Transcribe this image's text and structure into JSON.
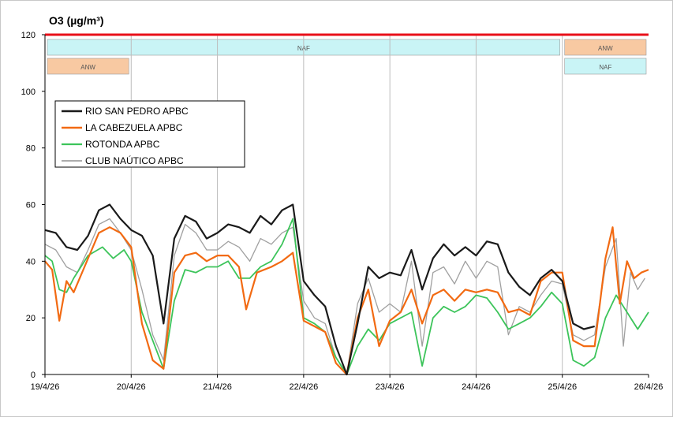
{
  "chart_data": {
    "type": "line",
    "title": "O3 (µg/m³)",
    "xlabel": "",
    "ylabel": "",
    "ylim": [
      0,
      120
    ],
    "xlim": [
      "2026-04-19",
      "2026-04-26"
    ],
    "yticks": [
      "0",
      "20",
      "40",
      "60",
      "80",
      "100",
      "120"
    ],
    "xticks": [
      "19/4/26",
      "20/4/26",
      "21/4/26",
      "22/4/26",
      "23/4/26",
      "24/4/26",
      "25/4/26",
      "26/4/26"
    ],
    "grid": "vertical lines at each day",
    "legend_position": "upper-left, inside plot",
    "threshold": {
      "value": 120,
      "color": "#e8101a"
    },
    "bands": [
      {
        "label": "NAF",
        "start": "2026-04-19",
        "end": "2026-04-25",
        "row": 1,
        "color": "#c9f4f6"
      },
      {
        "label": "ANW",
        "start": "2026-04-25",
        "end": "2026-04-26",
        "row": 1,
        "color": "#f8c9a2"
      },
      {
        "label": "ANW",
        "start": "2026-04-19",
        "end": "2026-04-20",
        "row": 2,
        "color": "#f8c9a2"
      },
      {
        "label": "NAF",
        "start": "2026-04-25",
        "end": "2026-04-26",
        "row": 2,
        "color": "#c9f4f6"
      }
    ],
    "series": [
      {
        "name": "RIO SAN PEDRO  APBC",
        "color": "#1a1a1a",
        "width": 2.2,
        "values": [
          [
            "2026-04-19 00:00",
            51
          ],
          [
            "2026-04-19 03:00",
            50
          ],
          [
            "2026-04-19 06:00",
            45
          ],
          [
            "2026-04-19 09:00",
            44
          ],
          [
            "2026-04-19 12:00",
            49
          ],
          [
            "2026-04-19 15:00",
            58
          ],
          [
            "2026-04-19 18:00",
            60
          ],
          [
            "2026-04-19 21:00",
            55
          ],
          [
            "2026-04-20 00:00",
            51
          ],
          [
            "2026-04-20 03:00",
            49
          ],
          [
            "2026-04-20 06:00",
            42
          ],
          [
            "2026-04-20 09:00",
            18
          ],
          [
            "2026-04-20 12:00",
            48
          ],
          [
            "2026-04-20 15:00",
            56
          ],
          [
            "2026-04-20 18:00",
            54
          ],
          [
            "2026-04-20 21:00",
            48
          ],
          [
            "2026-04-21 00:00",
            50
          ],
          [
            "2026-04-21 03:00",
            53
          ],
          [
            "2026-04-21 06:00",
            52
          ],
          [
            "2026-04-21 09:00",
            50
          ],
          [
            "2026-04-21 12:00",
            56
          ],
          [
            "2026-04-21 15:00",
            53
          ],
          [
            "2026-04-21 18:00",
            58
          ],
          [
            "2026-04-21 21:00",
            60
          ],
          [
            "2026-04-22 00:00",
            33
          ],
          [
            "2026-04-22 03:00",
            28
          ],
          [
            "2026-04-22 06:00",
            24
          ],
          [
            "2026-04-22 09:00",
            10
          ],
          [
            "2026-04-22 12:00",
            0
          ],
          [
            "2026-04-22 15:00",
            18
          ],
          [
            "2026-04-22 18:00",
            38
          ],
          [
            "2026-04-22 21:00",
            34
          ],
          [
            "2026-04-23 00:00",
            36
          ],
          [
            "2026-04-23 03:00",
            35
          ],
          [
            "2026-04-23 06:00",
            44
          ],
          [
            "2026-04-23 09:00",
            30
          ],
          [
            "2026-04-23 12:00",
            41
          ],
          [
            "2026-04-23 15:00",
            46
          ],
          [
            "2026-04-23 18:00",
            42
          ],
          [
            "2026-04-23 21:00",
            45
          ],
          [
            "2026-04-24 00:00",
            42
          ],
          [
            "2026-04-24 03:00",
            47
          ],
          [
            "2026-04-24 06:00",
            46
          ],
          [
            "2026-04-24 09:00",
            36
          ],
          [
            "2026-04-24 12:00",
            31
          ],
          [
            "2026-04-24 15:00",
            28
          ],
          [
            "2026-04-24 18:00",
            34
          ],
          [
            "2026-04-24 21:00",
            37
          ],
          [
            "2026-04-25 00:00",
            33
          ],
          [
            "2026-04-25 03:00",
            18
          ],
          [
            "2026-04-25 06:00",
            16
          ],
          [
            "2026-04-25 09:00",
            17
          ]
        ]
      },
      {
        "name": "LA CABEZUELA  APBC",
        "color": "#f26a12",
        "width": 2.2,
        "values": [
          [
            "2026-04-19 00:00",
            40
          ],
          [
            "2026-04-19 02:00",
            37
          ],
          [
            "2026-04-19 04:00",
            19
          ],
          [
            "2026-04-19 06:00",
            33
          ],
          [
            "2026-04-19 08:00",
            29
          ],
          [
            "2026-04-19 11:00",
            38
          ],
          [
            "2026-04-19 15:00",
            50
          ],
          [
            "2026-04-19 18:00",
            52
          ],
          [
            "2026-04-19 21:00",
            50
          ],
          [
            "2026-04-20 00:00",
            45
          ],
          [
            "2026-04-20 03:00",
            18
          ],
          [
            "2026-04-20 06:00",
            5
          ],
          [
            "2026-04-20 09:00",
            2
          ],
          [
            "2026-04-20 12:00",
            36
          ],
          [
            "2026-04-20 15:00",
            42
          ],
          [
            "2026-04-20 18:00",
            43
          ],
          [
            "2026-04-20 21:00",
            40
          ],
          [
            "2026-04-21 00:00",
            42
          ],
          [
            "2026-04-21 03:00",
            42
          ],
          [
            "2026-04-21 06:00",
            38
          ],
          [
            "2026-04-21 08:00",
            23
          ],
          [
            "2026-04-21 11:00",
            36
          ],
          [
            "2026-04-21 15:00",
            38
          ],
          [
            "2026-04-21 18:00",
            40
          ],
          [
            "2026-04-21 21:00",
            43
          ],
          [
            "2026-04-22 00:00",
            19
          ],
          [
            "2026-04-22 03:00",
            17
          ],
          [
            "2026-04-22 06:00",
            15
          ],
          [
            "2026-04-22 09:00",
            4
          ],
          [
            "2026-04-22 12:00",
            0
          ],
          [
            "2026-04-22 15:00",
            20
          ],
          [
            "2026-04-22 18:00",
            30
          ],
          [
            "2026-04-22 21:00",
            10
          ],
          [
            "2026-04-23 00:00",
            19
          ],
          [
            "2026-04-23 03:00",
            22
          ],
          [
            "2026-04-23 06:00",
            30
          ],
          [
            "2026-04-23 09:00",
            18
          ],
          [
            "2026-04-23 12:00",
            28
          ],
          [
            "2026-04-23 15:00",
            30
          ],
          [
            "2026-04-23 18:00",
            26
          ],
          [
            "2026-04-23 21:00",
            30
          ],
          [
            "2026-04-24 00:00",
            29
          ],
          [
            "2026-04-24 03:00",
            30
          ],
          [
            "2026-04-24 06:00",
            29
          ],
          [
            "2026-04-24 09:00",
            22
          ],
          [
            "2026-04-24 12:00",
            23
          ],
          [
            "2026-04-24 15:00",
            21
          ],
          [
            "2026-04-24 18:00",
            33
          ],
          [
            "2026-04-24 21:00",
            36
          ],
          [
            "2026-04-25 00:00",
            36
          ],
          [
            "2026-04-25 03:00",
            12
          ],
          [
            "2026-04-25 06:00",
            10
          ],
          [
            "2026-04-25 09:00",
            10
          ],
          [
            "2026-04-25 12:00",
            41
          ],
          [
            "2026-04-25 14:00",
            52
          ],
          [
            "2026-04-25 16:00",
            25
          ],
          [
            "2026-04-25 18:00",
            40
          ],
          [
            "2026-04-25 20:00",
            34
          ],
          [
            "2026-04-25 22:00",
            36
          ],
          [
            "2026-04-26 00:00",
            37
          ]
        ]
      },
      {
        "name": "ROTONDA  APBC",
        "color": "#3cc45a",
        "width": 1.8,
        "values": [
          [
            "2026-04-19 00:00",
            42
          ],
          [
            "2026-04-19 02:00",
            40
          ],
          [
            "2026-04-19 04:00",
            30
          ],
          [
            "2026-04-19 06:00",
            29
          ],
          [
            "2026-04-19 08:00",
            34
          ],
          [
            "2026-04-19 12:00",
            42
          ],
          [
            "2026-04-19 16:00",
            45
          ],
          [
            "2026-04-19 19:00",
            41
          ],
          [
            "2026-04-19 22:00",
            44
          ],
          [
            "2026-04-20 00:00",
            40
          ],
          [
            "2026-04-20 03:00",
            22
          ],
          [
            "2026-04-20 06:00",
            12
          ],
          [
            "2026-04-20 09:00",
            2
          ],
          [
            "2026-04-20 12:00",
            26
          ],
          [
            "2026-04-20 15:00",
            37
          ],
          [
            "2026-04-20 18:00",
            36
          ],
          [
            "2026-04-20 21:00",
            38
          ],
          [
            "2026-04-21 00:00",
            38
          ],
          [
            "2026-04-21 03:00",
            40
          ],
          [
            "2026-04-21 06:00",
            34
          ],
          [
            "2026-04-21 09:00",
            34
          ],
          [
            "2026-04-21 12:00",
            38
          ],
          [
            "2026-04-21 15:00",
            40
          ],
          [
            "2026-04-21 18:00",
            46
          ],
          [
            "2026-04-21 21:00",
            55
          ],
          [
            "2026-04-22 00:00",
            20
          ],
          [
            "2026-04-22 03:00",
            18
          ],
          [
            "2026-04-22 06:00",
            15
          ],
          [
            "2026-04-22 09:00",
            6
          ],
          [
            "2026-04-22 12:00",
            0
          ],
          [
            "2026-04-22 15:00",
            10
          ],
          [
            "2026-04-22 18:00",
            16
          ],
          [
            "2026-04-22 21:00",
            12
          ],
          [
            "2026-04-23 00:00",
            18
          ],
          [
            "2026-04-23 03:00",
            20
          ],
          [
            "2026-04-23 06:00",
            22
          ],
          [
            "2026-04-23 09:00",
            3
          ],
          [
            "2026-04-23 12:00",
            20
          ],
          [
            "2026-04-23 15:00",
            24
          ],
          [
            "2026-04-23 18:00",
            22
          ],
          [
            "2026-04-23 21:00",
            24
          ],
          [
            "2026-04-24 00:00",
            28
          ],
          [
            "2026-04-24 03:00",
            27
          ],
          [
            "2026-04-24 06:00",
            22
          ],
          [
            "2026-04-24 09:00",
            16
          ],
          [
            "2026-04-24 12:00",
            18
          ],
          [
            "2026-04-24 15:00",
            20
          ],
          [
            "2026-04-24 18:00",
            24
          ],
          [
            "2026-04-24 21:00",
            29
          ],
          [
            "2026-04-25 00:00",
            25
          ],
          [
            "2026-04-25 03:00",
            5
          ],
          [
            "2026-04-25 06:00",
            3
          ],
          [
            "2026-04-25 09:00",
            6
          ],
          [
            "2026-04-25 12:00",
            20
          ],
          [
            "2026-04-25 15:00",
            28
          ],
          [
            "2026-04-25 18:00",
            22
          ],
          [
            "2026-04-25 21:00",
            16
          ],
          [
            "2026-04-26 00:00",
            22
          ]
        ]
      },
      {
        "name": "CLUB NAÚTICO  APBC",
        "color": "#a0a0a0",
        "width": 1.3,
        "values": [
          [
            "2026-04-19 00:00",
            46
          ],
          [
            "2026-04-19 03:00",
            44
          ],
          [
            "2026-04-19 06:00",
            38
          ],
          [
            "2026-04-19 09:00",
            36
          ],
          [
            "2026-04-19 12:00",
            44
          ],
          [
            "2026-04-19 15:00",
            53
          ],
          [
            "2026-04-19 18:00",
            55
          ],
          [
            "2026-04-19 21:00",
            50
          ],
          [
            "2026-04-20 00:00",
            44
          ],
          [
            "2026-04-20 03:00",
            30
          ],
          [
            "2026-04-20 06:00",
            14
          ],
          [
            "2026-04-20 09:00",
            5
          ],
          [
            "2026-04-20 12:00",
            42
          ],
          [
            "2026-04-20 15:00",
            53
          ],
          [
            "2026-04-20 18:00",
            50
          ],
          [
            "2026-04-20 21:00",
            44
          ],
          [
            "2026-04-21 00:00",
            44
          ],
          [
            "2026-04-21 03:00",
            47
          ],
          [
            "2026-04-21 06:00",
            45
          ],
          [
            "2026-04-21 09:00",
            40
          ],
          [
            "2026-04-21 12:00",
            48
          ],
          [
            "2026-04-21 15:00",
            46
          ],
          [
            "2026-04-21 18:00",
            50
          ],
          [
            "2026-04-21 21:00",
            52
          ],
          [
            "2026-04-22 00:00",
            26
          ],
          [
            "2026-04-22 03:00",
            20
          ],
          [
            "2026-04-22 06:00",
            18
          ],
          [
            "2026-04-22 09:00",
            6
          ],
          [
            "2026-04-22 12:00",
            0
          ],
          [
            "2026-04-22 15:00",
            25
          ],
          [
            "2026-04-22 18:00",
            34
          ],
          [
            "2026-04-22 21:00",
            22
          ],
          [
            "2026-04-23 00:00",
            25
          ],
          [
            "2026-04-23 03:00",
            22
          ],
          [
            "2026-04-23 06:00",
            40
          ],
          [
            "2026-04-23 09:00",
            10
          ],
          [
            "2026-04-23 12:00",
            36
          ],
          [
            "2026-04-23 15:00",
            38
          ],
          [
            "2026-04-23 18:00",
            32
          ],
          [
            "2026-04-23 21:00",
            40
          ],
          [
            "2026-04-24 00:00",
            34
          ],
          [
            "2026-04-24 03:00",
            40
          ],
          [
            "2026-04-24 06:00",
            38
          ],
          [
            "2026-04-24 09:00",
            14
          ],
          [
            "2026-04-24 12:00",
            24
          ],
          [
            "2026-04-24 15:00",
            22
          ],
          [
            "2026-04-24 18:00",
            28
          ],
          [
            "2026-04-24 21:00",
            33
          ],
          [
            "2026-04-25 00:00",
            32
          ],
          [
            "2026-04-25 03:00",
            14
          ],
          [
            "2026-04-25 06:00",
            12
          ],
          [
            "2026-04-25 09:00",
            14
          ],
          [
            "2026-04-25 12:00",
            38
          ],
          [
            "2026-04-25 15:00",
            48
          ],
          [
            "2026-04-25 17:00",
            10
          ],
          [
            "2026-04-25 19:00",
            36
          ],
          [
            "2026-04-25 21:00",
            30
          ],
          [
            "2026-04-25 23:00",
            34
          ]
        ]
      }
    ]
  }
}
